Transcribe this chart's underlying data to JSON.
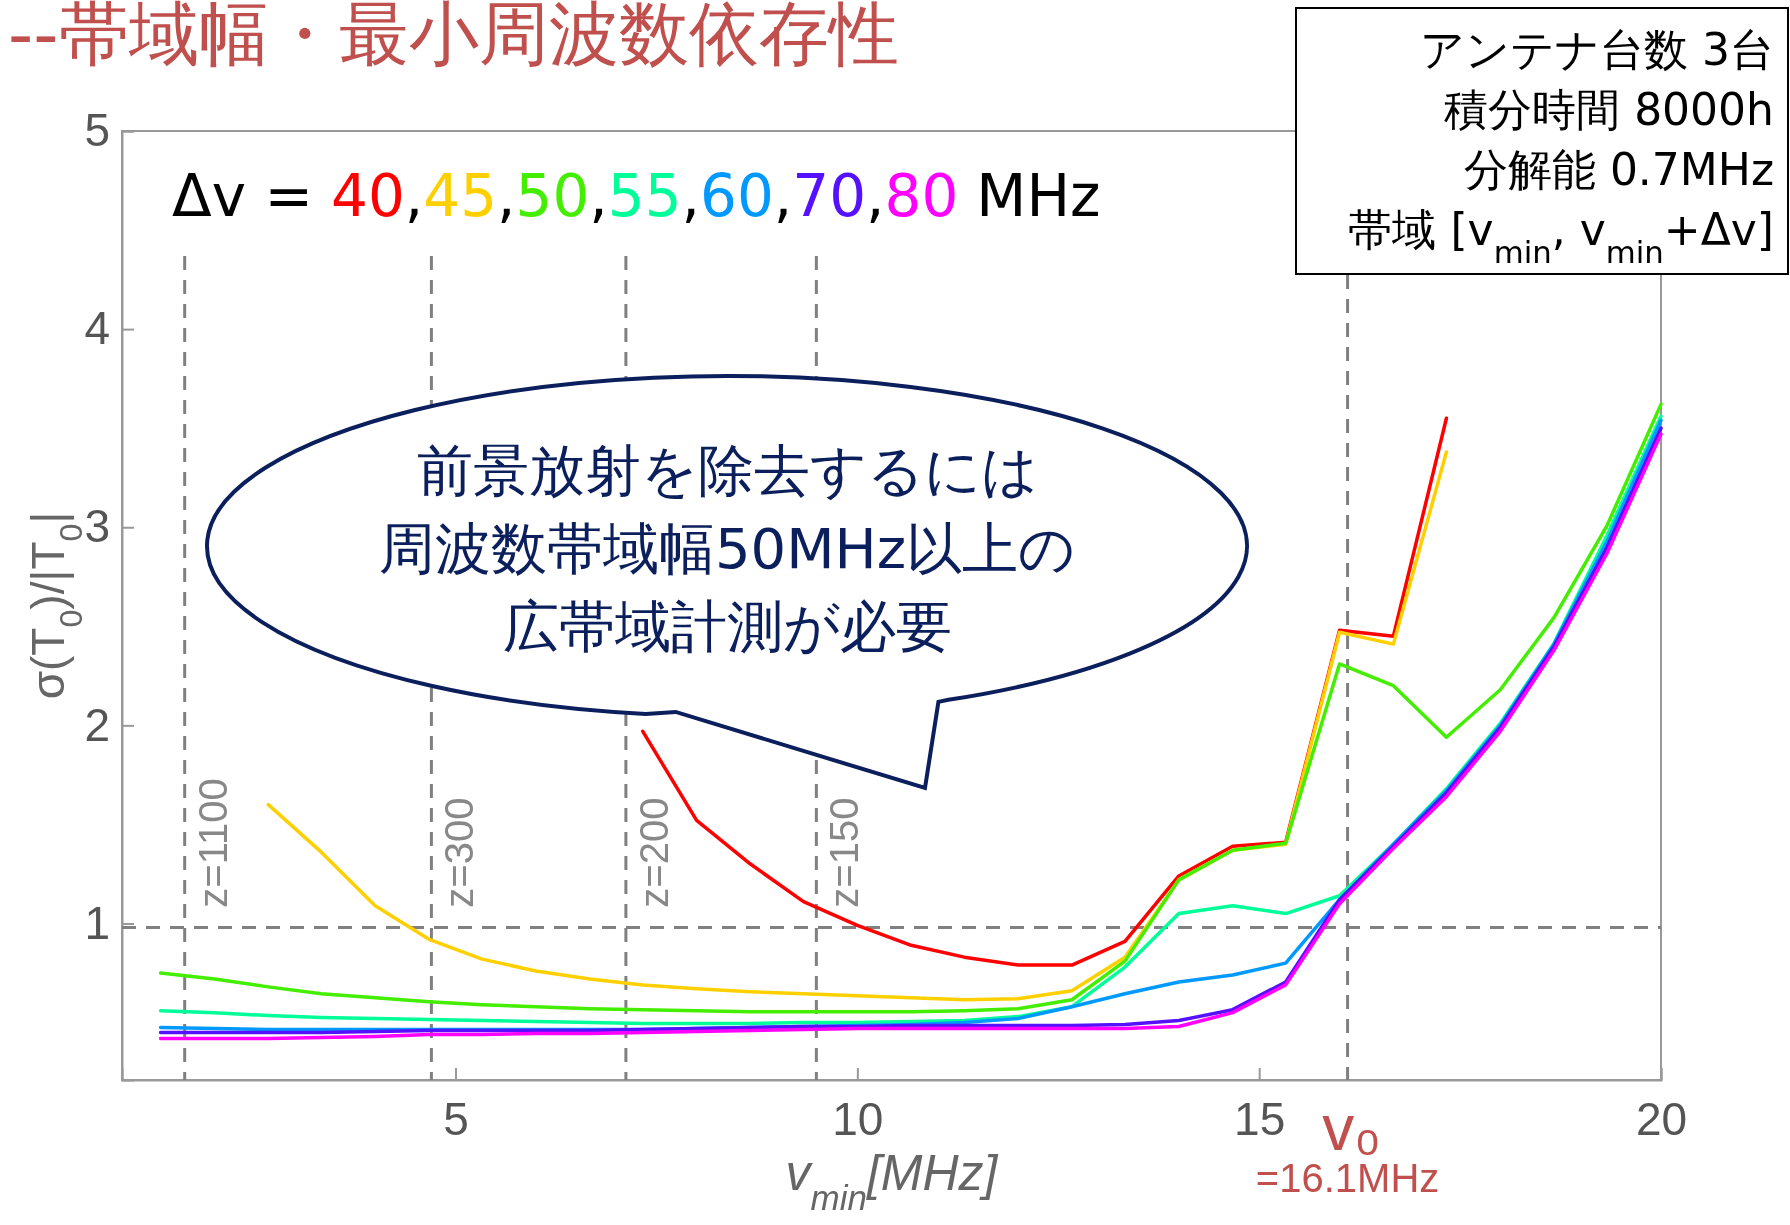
{
  "chart_data": {
    "type": "line",
    "title": "--帯域幅・最小周波数依存性",
    "xlabel": "v$_{min}$[MHz]",
    "ylabel": "σ(T$_{0}$)/|T$_{0}$|",
    "legend_title": "Δv =",
    "legend": "top left",
    "xlim": [
      0.85,
      20
    ],
    "ylim": [
      0.21,
      5
    ],
    "xticks": [
      5,
      10,
      15,
      20
    ],
    "yticks": [
      1,
      2,
      3,
      4,
      5
    ],
    "grid": false,
    "line_style": "solid",
    "marker": "none",
    "x": [
      1.33,
      2,
      2.67,
      3.33,
      4,
      4.67,
      5.33,
      6,
      6.67,
      7.33,
      8,
      8.67,
      9.33,
      10,
      10.67,
      11.33,
      12,
      12.67,
      13.33,
      14,
      14.67,
      15.33,
      16,
      16.67,
      17.33,
      18,
      18.67,
      19.33,
      20
    ],
    "series": [
      {
        "name": "40",
        "color": "#ff0000",
        "values": [
          null,
          null,
          null,
          null,
          null,
          null,
          null,
          null,
          null,
          1.97,
          1.52,
          1.3,
          1.11,
          0.99,
          0.89,
          0.83,
          0.79,
          0.79,
          0.91,
          1.24,
          1.39,
          1.41,
          2.48,
          2.45,
          3.55,
          null,
          null,
          null,
          null
        ]
      },
      {
        "name": "45",
        "color": "#ffd000",
        "values": [
          null,
          null,
          1.6,
          1.36,
          1.09,
          0.92,
          0.82,
          0.76,
          0.72,
          0.69,
          0.67,
          0.655,
          0.645,
          0.635,
          0.625,
          0.615,
          0.62,
          0.66,
          0.83,
          1.22,
          1.37,
          1.4,
          2.47,
          2.41,
          3.38,
          null,
          null,
          null,
          null
        ]
      },
      {
        "name": "50",
        "color": "#44ee00",
        "values": [
          0.75,
          0.72,
          0.68,
          0.645,
          0.625,
          0.605,
          0.59,
          0.58,
          0.57,
          0.565,
          0.56,
          0.555,
          0.555,
          0.555,
          0.555,
          0.56,
          0.57,
          0.615,
          0.81,
          1.22,
          1.37,
          1.405,
          2.31,
          2.2,
          1.94,
          2.18,
          2.545,
          3.01,
          3.62
        ]
      },
      {
        "name": "55",
        "color": "#00ff99",
        "values": [
          0.56,
          0.55,
          0.535,
          0.525,
          0.52,
          0.515,
          0.51,
          0.505,
          0.5,
          0.495,
          0.495,
          0.495,
          0.5,
          0.5,
          0.505,
          0.51,
          0.53,
          0.58,
          0.78,
          1.05,
          1.09,
          1.05,
          1.14,
          1.4,
          1.68,
          2.01,
          2.415,
          2.96,
          3.56
        ]
      },
      {
        "name": "60",
        "color": "#0099ff",
        "values": [
          0.475,
          0.47,
          0.465,
          0.465,
          0.465,
          0.465,
          0.465,
          0.465,
          0.465,
          0.465,
          0.47,
          0.475,
          0.48,
          0.485,
          0.49,
          0.5,
          0.52,
          0.58,
          0.645,
          0.705,
          0.74,
          0.8,
          1.12,
          1.4,
          1.67,
          2.0,
          2.41,
          2.93,
          3.54
        ]
      },
      {
        "name": "70",
        "color": "#5511ff",
        "values": [
          0.45,
          0.45,
          0.45,
          0.45,
          0.455,
          0.46,
          0.46,
          0.46,
          0.46,
          0.465,
          0.47,
          0.475,
          0.48,
          0.48,
          0.485,
          0.485,
          0.485,
          0.485,
          0.49,
          0.51,
          0.565,
          0.705,
          1.12,
          1.39,
          1.66,
          1.99,
          2.4,
          2.9,
          3.5
        ]
      },
      {
        "name": "80",
        "color": "#ff00ff",
        "values": [
          0.42,
          0.42,
          0.42,
          0.425,
          0.43,
          0.44,
          0.44,
          0.445,
          0.445,
          0.45,
          0.455,
          0.46,
          0.465,
          0.47,
          0.47,
          0.47,
          0.47,
          0.47,
          0.47,
          0.48,
          0.55,
          0.69,
          1.1,
          1.38,
          1.64,
          1.97,
          2.38,
          2.87,
          3.47
        ]
      }
    ],
    "ref_lines": [
      {
        "axis": "x",
        "value": 1.63,
        "color": "#808080",
        "line_style": "dashed"
      },
      {
        "axis": "x",
        "value": 4.7,
        "color": "#808080",
        "line_style": "dashed"
      },
      {
        "axis": "x",
        "value": 7.12,
        "color": "#808080",
        "line_style": "dashed"
      },
      {
        "axis": "x",
        "value": 9.49,
        "color": "#808080",
        "line_style": "dashed"
      },
      {
        "axis": "x",
        "value": 16.1,
        "color": "#808080",
        "line_style": "dashed"
      },
      {
        "axis": "y",
        "value": 0.98,
        "color": "#808080",
        "line_style": "dashed"
      }
    ],
    "annotations": [
      "MHz",
      ",",
      "アンテナ台数 3台",
      "積分時間 8000h",
      "分解能 0.7MHz",
      "帯域 [v$_{min}$, v$_{min}$+Δv]",
      "前景放射を除去するには",
      "周波数帯域幅50MHz以上の",
      "広帯域計測が必要",
      "v₀",
      "=16.1MHz",
      {
        "text": "z=1100",
        "x": 1.63,
        "y": 1.08
      },
      {
        "text": "z=300",
        "x": 4.7,
        "y": 1.08
      },
      {
        "text": "z=200",
        "x": 7.12,
        "y": 1.08
      },
      {
        "text": "z=150",
        "x": 9.49,
        "y": 1.08
      }
    ]
  }
}
